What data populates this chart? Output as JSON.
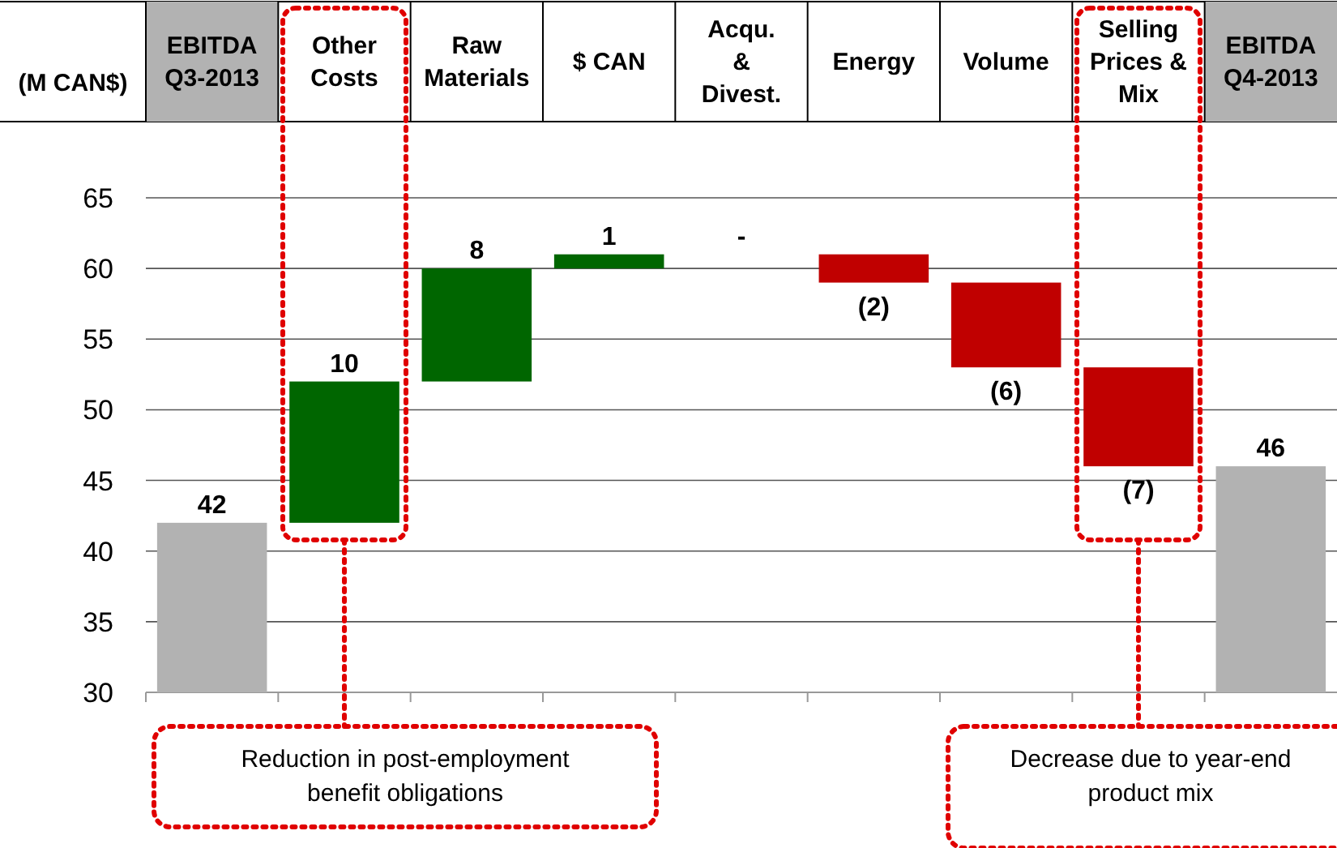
{
  "chart_data": {
    "type": "bar",
    "ylabel": "(M CAN$)",
    "categories": [
      "EBITDA\nQ3-2013",
      "Other\nCosts",
      "Raw\nMaterials",
      "$ CAN",
      "Acqu.\n&\nDivest.",
      "Energy",
      "Volume",
      "Selling\nPrices &\nMix",
      "EBITDA\nQ4-2013"
    ],
    "values": [
      42,
      10,
      8,
      1,
      null,
      -2,
      -6,
      -7,
      46
    ],
    "base": [
      null,
      42,
      52,
      60,
      null,
      61,
      59,
      53,
      null
    ],
    "colors": [
      "#b2b2b2",
      "#006600",
      "#006600",
      "#006600",
      null,
      "#c00000",
      "#c00000",
      "#c00000",
      "#b2b2b2"
    ],
    "value_labels": [
      "42",
      "10",
      "8",
      "1",
      "-",
      "(2)",
      "(6)",
      "(7)",
      "46"
    ],
    "ylim": [
      30,
      65
    ],
    "yticks": [
      30,
      35,
      40,
      45,
      50,
      55,
      60,
      65
    ],
    "grid": "y",
    "annotations": [
      "Reduction in post-employment benefit obligations",
      "Decrease due to year-end product mix"
    ]
  }
}
